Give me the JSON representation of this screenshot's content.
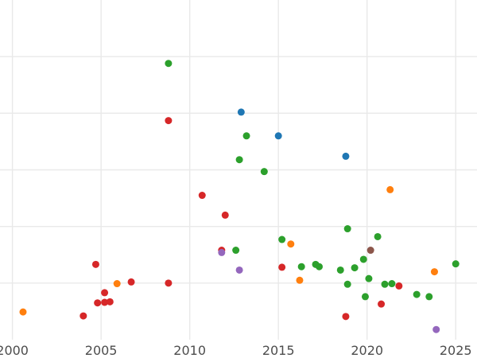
{
  "chart_data": {
    "type": "scatter",
    "title": "",
    "xlabel": "",
    "ylabel": "",
    "xlim": [
      1999.3,
      2026.2
    ],
    "ylim": [
      0,
      6
    ],
    "x_ticks": [
      2000,
      2005,
      2010,
      2015,
      2020,
      2025
    ],
    "x_tick_labels": [
      "2000",
      "2005",
      "2010",
      "2015",
      "2020",
      "2025"
    ],
    "y_gridlines": [
      1,
      2,
      3,
      4,
      5
    ],
    "grid": true,
    "legend": "none",
    "colors": {
      "blue": "#1f77b4",
      "orange": "#ff7f0e",
      "green": "#2ca02c",
      "red": "#d62728",
      "purple": "#9467bd",
      "brown": "#8c564b"
    },
    "points": [
      {
        "x": 2008.8,
        "y": 4.88,
        "color": "green"
      },
      {
        "x": 2008.8,
        "y": 3.87,
        "color": "red"
      },
      {
        "x": 2012.9,
        "y": 4.02,
        "color": "blue"
      },
      {
        "x": 2015.0,
        "y": 3.6,
        "color": "blue"
      },
      {
        "x": 2013.2,
        "y": 3.6,
        "color": "green"
      },
      {
        "x": 2012.8,
        "y": 3.18,
        "color": "green"
      },
      {
        "x": 2014.2,
        "y": 2.97,
        "color": "green"
      },
      {
        "x": 2018.8,
        "y": 3.24,
        "color": "blue"
      },
      {
        "x": 2010.7,
        "y": 2.55,
        "color": "red"
      },
      {
        "x": 2012.0,
        "y": 2.2,
        "color": "red"
      },
      {
        "x": 2021.3,
        "y": 2.65,
        "color": "orange"
      },
      {
        "x": 2018.9,
        "y": 1.96,
        "color": "green"
      },
      {
        "x": 2020.6,
        "y": 1.82,
        "color": "green"
      },
      {
        "x": 2015.2,
        "y": 1.77,
        "color": "green"
      },
      {
        "x": 2015.7,
        "y": 1.69,
        "color": "orange"
      },
      {
        "x": 2020.2,
        "y": 1.58,
        "color": "brown"
      },
      {
        "x": 2011.8,
        "y": 1.58,
        "color": "red"
      },
      {
        "x": 2011.8,
        "y": 1.54,
        "color": "purple"
      },
      {
        "x": 2012.6,
        "y": 1.58,
        "color": "green"
      },
      {
        "x": 2019.8,
        "y": 1.42,
        "color": "green"
      },
      {
        "x": 2004.7,
        "y": 1.33,
        "color": "red"
      },
      {
        "x": 2015.2,
        "y": 1.28,
        "color": "red"
      },
      {
        "x": 2016.3,
        "y": 1.29,
        "color": "green"
      },
      {
        "x": 2017.1,
        "y": 1.33,
        "color": "green"
      },
      {
        "x": 2017.3,
        "y": 1.29,
        "color": "green"
      },
      {
        "x": 2018.5,
        "y": 1.23,
        "color": "green"
      },
      {
        "x": 2019.3,
        "y": 1.27,
        "color": "green"
      },
      {
        "x": 2025.0,
        "y": 1.34,
        "color": "green"
      },
      {
        "x": 2012.8,
        "y": 1.23,
        "color": "purple"
      },
      {
        "x": 2023.8,
        "y": 1.2,
        "color": "orange"
      },
      {
        "x": 2016.2,
        "y": 1.05,
        "color": "orange"
      },
      {
        "x": 2020.1,
        "y": 1.08,
        "color": "green"
      },
      {
        "x": 2006.7,
        "y": 1.02,
        "color": "red"
      },
      {
        "x": 2005.9,
        "y": 0.99,
        "color": "orange"
      },
      {
        "x": 2008.8,
        "y": 1.0,
        "color": "red"
      },
      {
        "x": 2018.9,
        "y": 0.98,
        "color": "green"
      },
      {
        "x": 2021.0,
        "y": 0.98,
        "color": "green"
      },
      {
        "x": 2021.4,
        "y": 0.99,
        "color": "green"
      },
      {
        "x": 2021.8,
        "y": 0.95,
        "color": "red"
      },
      {
        "x": 2005.2,
        "y": 0.83,
        "color": "red"
      },
      {
        "x": 2004.8,
        "y": 0.65,
        "color": "red"
      },
      {
        "x": 2005.2,
        "y": 0.66,
        "color": "red"
      },
      {
        "x": 2005.5,
        "y": 0.67,
        "color": "red"
      },
      {
        "x": 2019.9,
        "y": 0.76,
        "color": "green"
      },
      {
        "x": 2022.8,
        "y": 0.8,
        "color": "green"
      },
      {
        "x": 2023.5,
        "y": 0.76,
        "color": "green"
      },
      {
        "x": 2020.8,
        "y": 0.63,
        "color": "red"
      },
      {
        "x": 2000.6,
        "y": 0.49,
        "color": "orange"
      },
      {
        "x": 2004.0,
        "y": 0.42,
        "color": "red"
      },
      {
        "x": 2018.8,
        "y": 0.41,
        "color": "red"
      },
      {
        "x": 2023.9,
        "y": 0.18,
        "color": "purple"
      }
    ]
  }
}
